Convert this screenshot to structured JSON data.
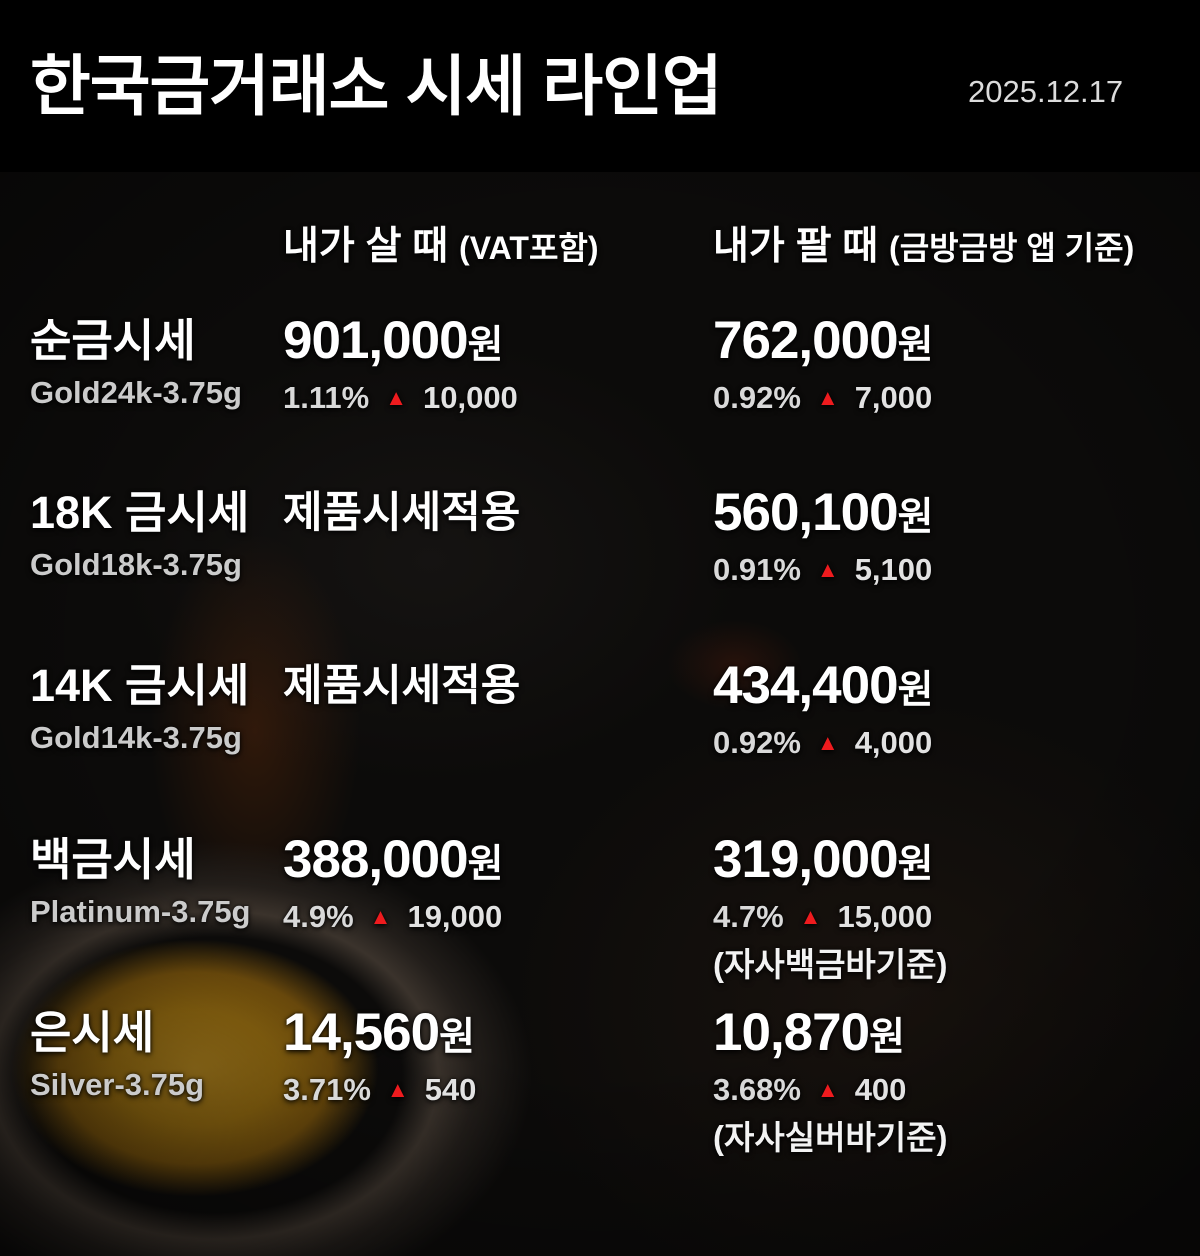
{
  "title": "한국금거래소 시세 라인업",
  "date": "2025.12.17",
  "columns": {
    "buy_label": "내가 살 때",
    "buy_note": "(VAT포함)",
    "sell_label": "내가 팔 때",
    "sell_note": "(금방금방 앱 기준)"
  },
  "icons": {
    "up_triangle": "▲"
  },
  "colors": {
    "up_red": "#ee1b1e",
    "text_white": "#ffffff",
    "text_gray": "#cbcbcb",
    "background": "#000000",
    "molten_amber": "#85600f"
  },
  "rows": [
    {
      "name": "순금시세",
      "sub": "Gold24k-3.75g",
      "buy_price": "901,000",
      "buy_unit": "원",
      "buy_pct": "1.11%",
      "buy_change": "10,000",
      "sell_price": "762,000",
      "sell_unit": "원",
      "sell_pct": "0.92%",
      "sell_change": "7,000"
    },
    {
      "name": "18K 금시세",
      "sub": "Gold18k-3.75g",
      "buy_text": "제품시세적용",
      "sell_price": "560,100",
      "sell_unit": "원",
      "sell_pct": "0.91%",
      "sell_change": "5,100"
    },
    {
      "name": "14K 금시세",
      "sub": "Gold14k-3.75g",
      "buy_text": "제품시세적용",
      "sell_price": "434,400",
      "sell_unit": "원",
      "sell_pct": "0.92%",
      "sell_change": "4,000"
    },
    {
      "name": "백금시세",
      "sub": "Platinum-3.75g",
      "buy_price": "388,000",
      "buy_unit": "원",
      "buy_pct": "4.9%",
      "buy_change": "19,000",
      "sell_price": "319,000",
      "sell_unit": "원",
      "sell_pct": "4.7%",
      "sell_change": "15,000",
      "sell_note": "(자사백금바기준)"
    },
    {
      "name": "은시세",
      "sub": "Silver-3.75g",
      "buy_price": "14,560",
      "buy_unit": "원",
      "buy_pct": "3.71%",
      "buy_change": "540",
      "sell_price": "10,870",
      "sell_unit": "원",
      "sell_pct": "3.68%",
      "sell_change": "400",
      "sell_note": "(자사실버바기준)"
    }
  ],
  "chart_data": {
    "type": "table",
    "title": "한국금거래소 시세 라인업",
    "date": "2025.12.17",
    "columns": [
      "품목",
      "내가 살 때 (VAT포함)",
      "내가 팔 때 (금방금방 앱 기준)"
    ],
    "rows": [
      [
        "순금시세 Gold24k-3.75g",
        "901,000원 / 1.11% ▲ 10,000",
        "762,000원 / 0.92% ▲ 7,000"
      ],
      [
        "18K 금시세 Gold18k-3.75g",
        "제품시세적용",
        "560,100원 / 0.91% ▲ 5,100"
      ],
      [
        "14K 금시세 Gold14k-3.75g",
        "제품시세적용",
        "434,400원 / 0.92% ▲ 4,000"
      ],
      [
        "백금시세 Platinum-3.75g",
        "388,000원 / 4.9% ▲ 19,000",
        "319,000원 / 4.7% ▲ 15,000 (자사백금바기준)"
      ],
      [
        "은시세 Silver-3.75g",
        "14,560원 / 3.71% ▲ 540",
        "10,870원 / 3.68% ▲ 400 (자사실버바기준)"
      ]
    ]
  }
}
